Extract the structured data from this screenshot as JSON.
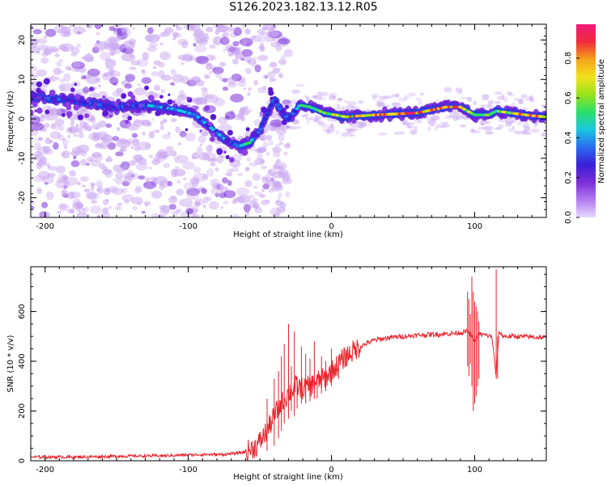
{
  "title": "S126.2023.182.13.12.R05",
  "colors": {
    "snr_line": "#e8232a",
    "cloud": "#c9a7f0",
    "cloud_dark": "#7a2fd8"
  },
  "chart_data": [
    {
      "type": "heatmap",
      "title": "",
      "xlabel": "Height of straight line (km)",
      "ylabel": "Frequency (Hz)",
      "xlim": [
        -210,
        150
      ],
      "ylim": [
        -25,
        24
      ],
      "x_ticks": [
        "-200",
        "-100",
        "0",
        "100"
      ],
      "y_ticks": [
        "20",
        "10",
        "0",
        "-10",
        "-20"
      ],
      "colorbar": {
        "label": "Normalized spectral amplitude",
        "range": [
          0.0,
          0.97
        ],
        "ticks": [
          "0.0",
          "0.2",
          "0.4",
          "0.6",
          "0.8"
        ],
        "colormap": [
          "#e8d8ff",
          "#b07cf0",
          "#7a2fd8",
          "#3a1fd6",
          "#2a6cf0",
          "#19c8e0",
          "#2adf6a",
          "#9ae21b",
          "#f2e21c",
          "#f5a31c",
          "#ef2a3a",
          "#f2187a"
        ]
      },
      "ridge": {
        "x": [
          -210,
          -190,
          -170,
          -150,
          -130,
          -110,
          -95,
          -85,
          -75,
          -65,
          -57,
          -50,
          -45,
          -40,
          -35,
          -30,
          -22,
          -15,
          -5,
          10,
          30,
          60,
          80,
          90,
          100,
          110,
          115,
          125,
          140,
          150
        ],
        "y": [
          5.5,
          5,
          4,
          3,
          3.5,
          2.5,
          1,
          -2,
          -5,
          -7,
          -6,
          -3,
          1,
          5,
          2,
          0,
          3.5,
          3,
          1.5,
          0.5,
          1,
          1.5,
          3,
          3,
          1,
          1,
          2,
          1.5,
          0.8,
          0.5
        ],
        "amplitude": [
          0.25,
          0.3,
          0.28,
          0.3,
          0.35,
          0.42,
          0.4,
          0.35,
          0.4,
          0.35,
          0.45,
          0.35,
          0.3,
          0.35,
          0.3,
          0.3,
          0.45,
          0.5,
          0.55,
          0.7,
          0.8,
          0.85,
          0.75,
          0.8,
          0.5,
          0.6,
          0.45,
          0.7,
          0.85,
          0.6
        ]
      }
    },
    {
      "type": "line",
      "title": "",
      "xlabel": "Height of straight line (km)",
      "ylabel": "SNR (10 * v/v)",
      "xlim": [
        -210,
        150
      ],
      "ylim": [
        0,
        780
      ],
      "x_ticks": [
        "-200",
        "-100",
        "0",
        "100"
      ],
      "y_ticks": [
        "0",
        "200",
        "400",
        "600"
      ],
      "series": [
        {
          "x": [
            -210,
            -180,
            -150,
            -120,
            -90,
            -75,
            -60,
            -52,
            -45,
            -40,
            -35,
            -30,
            -25,
            -20,
            -15,
            -10,
            -5,
            0,
            10,
            20,
            30,
            40,
            60,
            80,
            90,
            95,
            98,
            100,
            103,
            107,
            112,
            115,
            117,
            120,
            130,
            150
          ],
          "y": [
            15,
            15,
            18,
            20,
            25,
            25,
            35,
            60,
            120,
            180,
            230,
            270,
            300,
            290,
            300,
            320,
            330,
            360,
            420,
            460,
            485,
            495,
            505,
            510,
            515,
            520,
            500,
            480,
            510,
            505,
            500,
            340,
            520,
            500,
            500,
            495
          ]
        }
      ],
      "spikes": {
        "x": [
          -45,
          -40,
          -37,
          -35,
          -33,
          -30,
          -28,
          -26,
          -24,
          -21,
          -18,
          -15,
          -12,
          -10,
          -7,
          -4,
          0,
          5,
          10,
          95,
          96,
          97,
          98,
          99,
          100,
          101,
          102,
          103,
          115,
          116
        ],
        "y_top": [
          250,
          330,
          360,
          420,
          470,
          550,
          380,
          520,
          330,
          460,
          430,
          410,
          480,
          340,
          420,
          400,
          450,
          420,
          400,
          680,
          650,
          590,
          740,
          680,
          640,
          620,
          600,
          560,
          770,
          330
        ],
        "y_bottom": [
          40,
          60,
          90,
          120,
          150,
          170,
          200,
          180,
          210,
          230,
          230,
          240,
          250,
          250,
          270,
          280,
          300,
          330,
          380,
          380,
          340,
          390,
          300,
          200,
          230,
          260,
          300,
          330,
          330,
          500
        ]
      }
    }
  ]
}
